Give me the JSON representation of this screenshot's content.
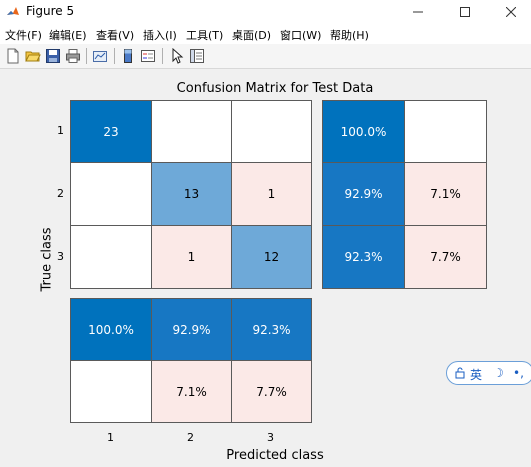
{
  "window": {
    "title": "Figure 5"
  },
  "menu": [
    "文件(F)",
    "编辑(E)",
    "查看(V)",
    "插入(I)",
    "工具(T)",
    "桌面(D)",
    "窗口(W)",
    "帮助(H)"
  ],
  "figure": {
    "title": "Confusion Matrix for Test Data",
    "xlabel": "Predicted class",
    "ylabel": "True class",
    "x_ticks": [
      "1",
      "2",
      "3"
    ],
    "y_ticks": [
      "1",
      "2",
      "3"
    ]
  },
  "chart_data": {
    "type": "heatmap",
    "title": "Confusion Matrix for Test Data",
    "xlabel": "Predicted class",
    "ylabel": "True class",
    "classes": [
      "1",
      "2",
      "3"
    ],
    "matrix": [
      [
        23,
        null,
        null
      ],
      [
        null,
        13,
        1
      ],
      [
        null,
        1,
        12
      ]
    ],
    "row_summary": [
      [
        "100.0%",
        ""
      ],
      [
        "92.9%",
        "7.1%"
      ],
      [
        "92.3%",
        "7.7%"
      ]
    ],
    "column_summary": [
      [
        "100.0%",
        "92.9%",
        "92.3%"
      ],
      [
        "",
        "7.1%",
        "7.7%"
      ]
    ],
    "colors": {
      "correct": "#0072bd",
      "correct_light": "#6ea9d8",
      "incorrect": "#fbe9e7",
      "empty": "#ffffff"
    }
  },
  "ime": {
    "label": "英",
    "moon_icon": "☽",
    "quote": "•,"
  }
}
